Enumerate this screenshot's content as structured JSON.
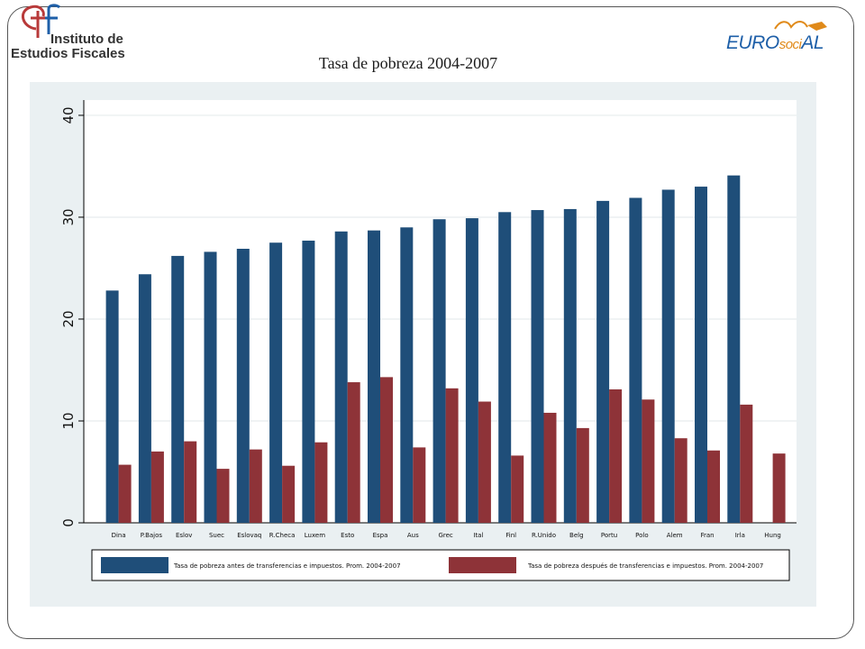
{
  "logos": {
    "ief_line1": "Instituto de",
    "ief_line2": "Estudios Fiscales",
    "ief_icon": "ief-logo-icon",
    "eurosocial": {
      "part1": "EURO",
      "part2": "soci",
      "part3": "AL"
    }
  },
  "chart_data": {
    "type": "bar",
    "title": "Tasa de pobreza 2004-2007",
    "xlabel": "",
    "ylabel": "",
    "ylim": [
      0,
      41.5
    ],
    "yticks": [
      0,
      10,
      20,
      30,
      40
    ],
    "grid": true,
    "legend_position": "bottom",
    "categories": [
      "Dina",
      "P.Bajos",
      "Eslov",
      "Suec",
      "Eslovaq",
      "R.Checa",
      "Luxem",
      "Esto",
      "Espa",
      "Aus",
      "Grec",
      "Ital",
      "Finl",
      "R.Unido",
      "Belg",
      "Portu",
      "Polo",
      "Alem",
      "Fran",
      "Irla",
      "Hung"
    ],
    "series": [
      {
        "name": "Tasa de pobreza antes de transferencias e impuestos. Prom. 2004-2007",
        "color": "#1f4e79",
        "values": [
          22.8,
          24.4,
          26.2,
          26.6,
          26.9,
          27.5,
          27.7,
          28.6,
          28.7,
          29.0,
          29.8,
          29.9,
          30.5,
          30.7,
          30.8,
          31.6,
          31.9,
          32.7,
          33.0,
          34.1,
          null
        ]
      },
      {
        "name": "Tasa de pobreza después de transferencias e impuestos. Prom. 2004-2007",
        "color": "#8e3338",
        "values": [
          5.7,
          7.0,
          8.0,
          5.3,
          7.2,
          5.6,
          7.9,
          13.8,
          14.3,
          7.4,
          13.2,
          11.9,
          6.6,
          10.8,
          9.3,
          13.1,
          12.1,
          8.3,
          7.1,
          11.6,
          6.8
        ]
      }
    ]
  }
}
